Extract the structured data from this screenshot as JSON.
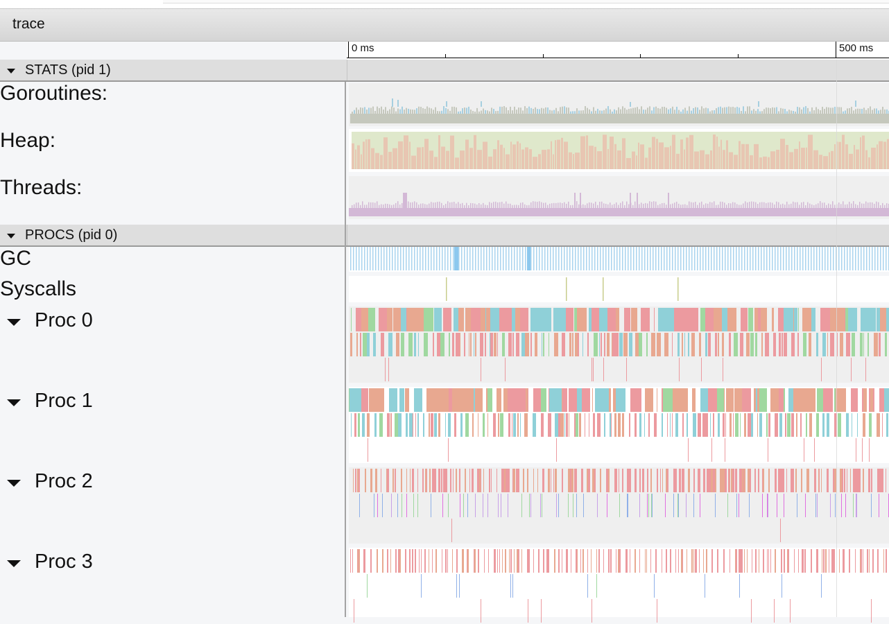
{
  "window": {
    "title": "trace"
  },
  "ruler": {
    "start_label": "0 ms",
    "end_label": "500 ms"
  },
  "groups": {
    "stats": {
      "label": "STATS (pid 1)"
    },
    "procs": {
      "label": "PROCS (pid 0)"
    }
  },
  "tracks": {
    "goroutines": "Goroutines:",
    "heap": "Heap:",
    "threads": "Threads:",
    "gc": "GC",
    "syscalls": "Syscalls"
  },
  "procs": [
    {
      "label": "Proc 0"
    },
    {
      "label": "Proc 1"
    },
    {
      "label": "Proc 2"
    },
    {
      "label": "Proc 3"
    }
  ],
  "colors": {
    "goroutine_base": "#c5c8bd",
    "goroutine_runnable": "#a6cfe0",
    "heap_alloc": "#e8c6b2",
    "heap_next_gc": "#dfe8cb",
    "threads": "#d3b8d6",
    "gc": "#a8d3ee",
    "syscall": "#c8cd8c",
    "slice_teal": "#8fd0d8",
    "slice_pink": "#ec9a9f",
    "slice_salmon": "#e8a890",
    "slice_green": "#a0d8a0",
    "slice_purple": "#c8a0e8"
  }
}
